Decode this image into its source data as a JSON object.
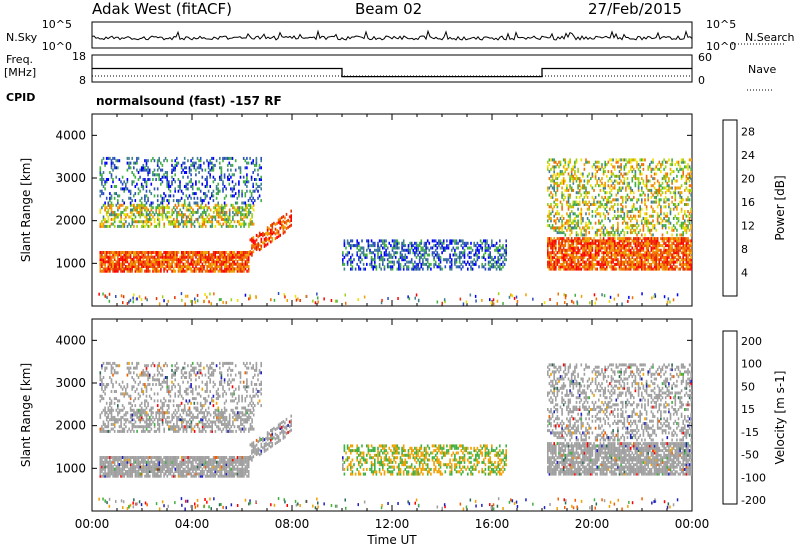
{
  "header": {
    "station": "Adak West (fitACF)",
    "beam": "Beam 02",
    "date": "27/Feb/2015"
  },
  "left_labels": {
    "nsky": "N.Sky",
    "freq": "Freq.",
    "freq_unit": "[MHz]",
    "cpid": "CPID"
  },
  "right_labels": {
    "nsearch": "N.Search",
    "nave": "Nave"
  },
  "cpid_text": "normalsound (fast) -157 RF",
  "colors": {
    "frame": "#000000",
    "power_scale": [
      "#0000ff",
      "#2a4ebf",
      "#3f7f8f",
      "#40b040",
      "#a0d010",
      "#f0e000",
      "#f0a000",
      "#f07000",
      "#e83000",
      "#ff0000"
    ],
    "velocity_scale": [
      "#2020c0",
      "#2a6a50",
      "#40b040",
      "#a0a0a0",
      "#f0a000",
      "#f06000",
      "#ff0000"
    ]
  },
  "chart_data": [
    {
      "type": "line",
      "panel": "noise",
      "ylabel_left": "N.Sky",
      "ylabel_right": "N.Search",
      "yticks_left": [
        "10^5",
        "10^0"
      ],
      "yticks_right": [
        "10^5",
        "10^0"
      ]
    },
    {
      "type": "line",
      "panel": "frequency",
      "ylabel_left": "Freq. [MHz]",
      "ylabel_right": "Nave",
      "yticks_left": [
        "18",
        "8"
      ],
      "yticks_right": [
        "60",
        "0"
      ],
      "freq_steps": [
        {
          "start": "00:00",
          "end": "10:00",
          "value": 13
        },
        {
          "start": "10:00",
          "end": "18:00",
          "value": 10
        },
        {
          "start": "18:00",
          "end": "24:00",
          "value": 13
        }
      ]
    },
    {
      "type": "heatmap",
      "panel": "power",
      "ylabel": "Slant Range [km]",
      "ylim": [
        0,
        4500
      ],
      "yticks": [
        1000,
        2000,
        3000,
        4000
      ],
      "colorbar_label": "Power [dB]",
      "colorbar_ticks": [
        4,
        8,
        12,
        16,
        20,
        24,
        28
      ],
      "colorbar_range": [
        0,
        30
      ]
    },
    {
      "type": "heatmap",
      "panel": "velocity",
      "ylabel": "Slant Range [km]",
      "ylim": [
        0,
        4500
      ],
      "yticks": [
        1000,
        2000,
        3000,
        4000
      ],
      "colorbar_label": "Velocity [m s-1]",
      "colorbar_ticks": [
        200,
        100,
        50,
        15,
        -15,
        -50,
        -100,
        -200
      ]
    }
  ],
  "x_axis": {
    "label": "Time UT",
    "ticks": [
      "00:00",
      "04:00",
      "08:00",
      "12:00",
      "16:00",
      "20:00",
      "00:00"
    ]
  }
}
